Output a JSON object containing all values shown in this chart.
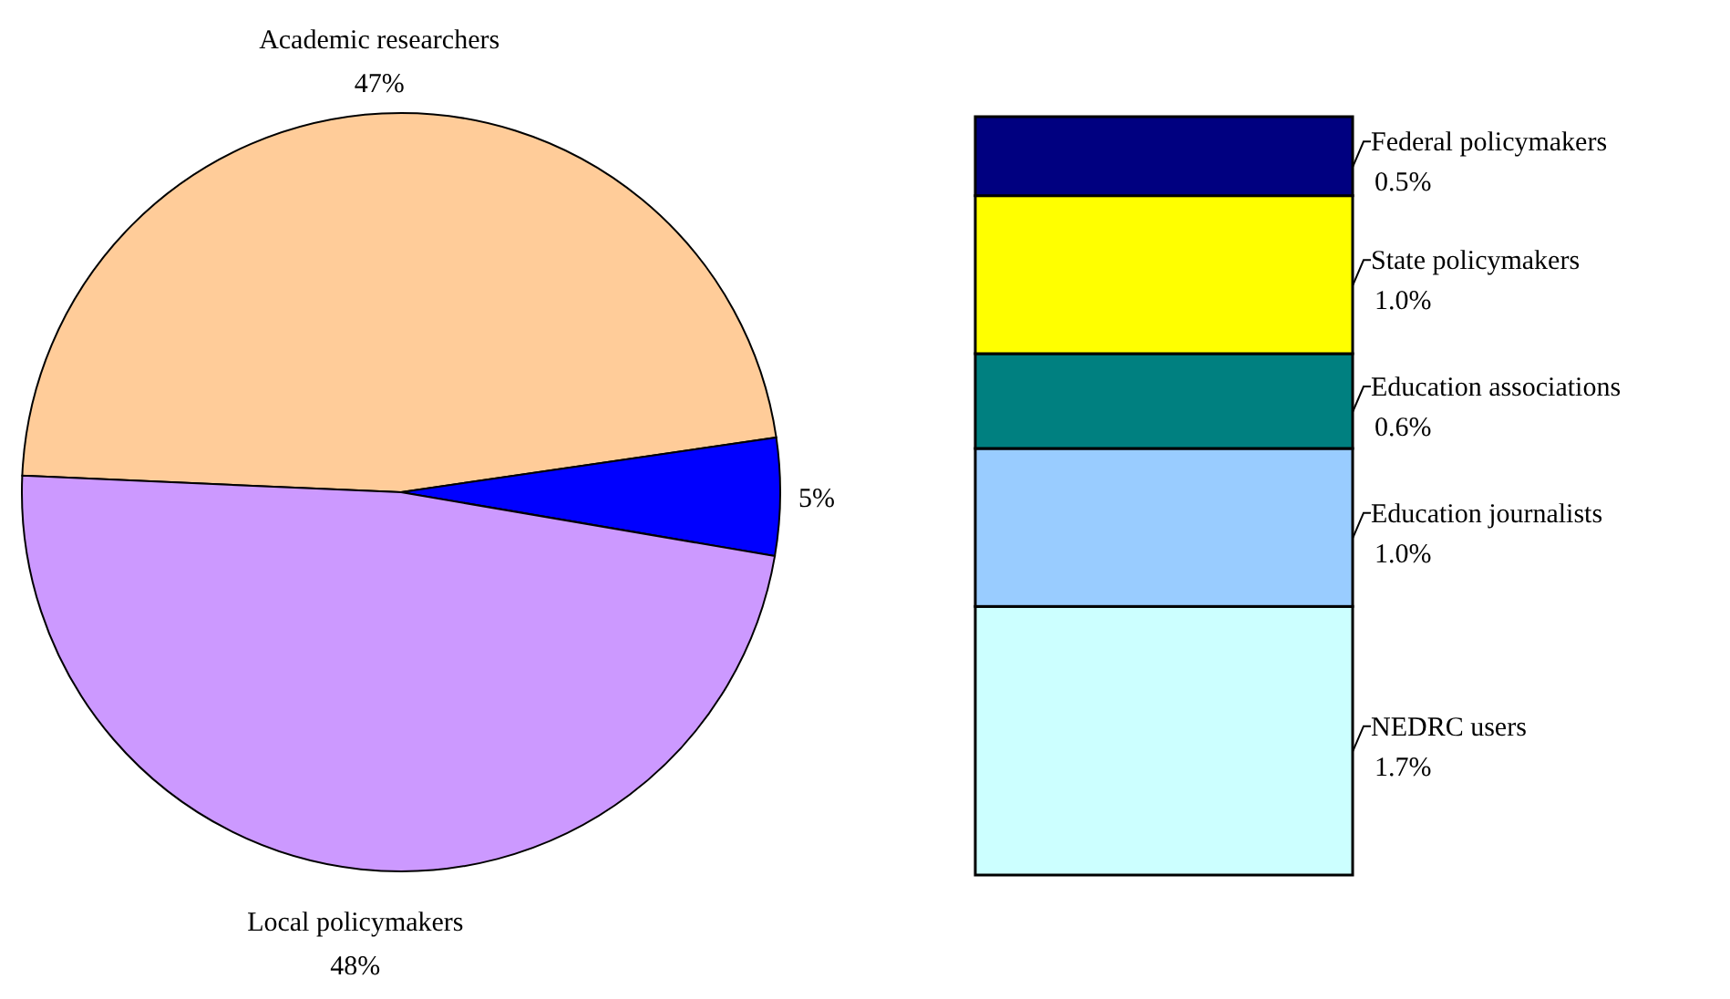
{
  "chart_data": [
    {
      "type": "pie",
      "categories": [
        "Academic researchers",
        null,
        "Local policymakers"
      ],
      "values": [
        47,
        5,
        48
      ],
      "colors": [
        "#ffcc99",
        "#0000ff",
        "#cc99ff"
      ],
      "value_labels": [
        "47%",
        "5%",
        "48%"
      ]
    },
    {
      "type": "bar",
      "stacked": true,
      "categories": [
        null
      ],
      "legend": "right",
      "series": [
        {
          "name": "NEDRC users",
          "color": "#ccffff",
          "values": [
            1.7
          ],
          "value_labels": [
            "1.7%"
          ]
        },
        {
          "name": "Education journalists",
          "color": "#99ccff",
          "values": [
            1.0
          ],
          "value_labels": [
            "1.0%"
          ]
        },
        {
          "name": "Education associations",
          "color": "#008080",
          "values": [
            0.6
          ],
          "value_labels": [
            "0.6%"
          ]
        },
        {
          "name": "State policymakers",
          "color": "#ffff00",
          "values": [
            1.0
          ],
          "value_labels": [
            "1.0%"
          ]
        },
        {
          "name": "Federal policymakers",
          "color": "#000080",
          "values": [
            0.5
          ],
          "value_labels": [
            "0.5%"
          ]
        }
      ]
    }
  ]
}
